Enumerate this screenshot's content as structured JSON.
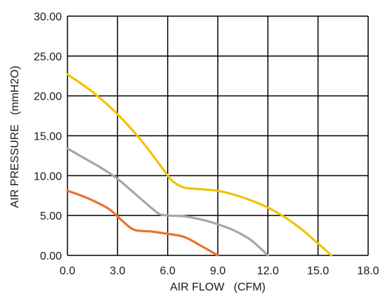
{
  "chart_data": {
    "type": "line",
    "title": "",
    "xlabel": "AIR FLOW   (CFM)",
    "ylabel": "AIR PRESSURE   (mmH2O)",
    "xlim": [
      0,
      18
    ],
    "ylim": [
      0,
      30
    ],
    "x_ticks": [
      "0.0",
      "3.0",
      "6.0",
      "9.0",
      "12.0",
      "15.0",
      "18.0"
    ],
    "y_ticks": [
      "0.00",
      "5.00",
      "10.00",
      "15.00",
      "20.00",
      "25.00",
      "30.00"
    ],
    "grid": true,
    "legend": "none",
    "series": [
      {
        "color": "#f2c200",
        "x": [
          0,
          1.5,
          3.0,
          4.5,
          5.8,
          6.3,
          7.0,
          8.0,
          9.0,
          10.0,
          11.0,
          12.0,
          13.0,
          14.0,
          15.0,
          15.8
        ],
        "y": [
          22.7,
          20.5,
          17.7,
          14.2,
          10.6,
          9.3,
          8.5,
          8.3,
          8.1,
          7.6,
          6.9,
          6.0,
          4.8,
          3.3,
          1.5,
          0.0
        ]
      },
      {
        "color": "#a6a6a6",
        "x": [
          0,
          1.0,
          2.0,
          3.0,
          4.0,
          5.0,
          5.5,
          6.0,
          7.0,
          8.0,
          9.0,
          10.0,
          11.0,
          12.0
        ],
        "y": [
          13.4,
          12.2,
          11.0,
          9.6,
          7.8,
          6.0,
          5.2,
          5.0,
          4.9,
          4.5,
          3.9,
          3.1,
          1.9,
          0.0
        ]
      },
      {
        "color": "#e8732a",
        "x": [
          0,
          0.7,
          1.5,
          2.5,
          3.3,
          4.0,
          5.0,
          6.0,
          7.0,
          8.0,
          9.0
        ],
        "y": [
          8.1,
          7.6,
          6.9,
          5.8,
          4.3,
          3.2,
          3.0,
          2.7,
          2.3,
          1.2,
          0.0
        ]
      }
    ]
  }
}
